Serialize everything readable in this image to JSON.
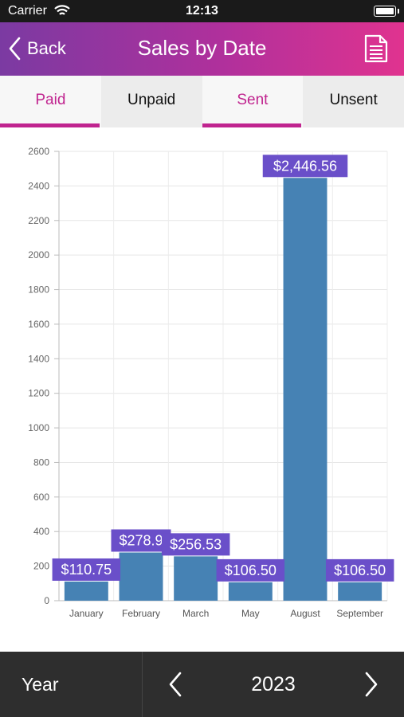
{
  "status_bar": {
    "carrier": "Carrier",
    "time": "12:13"
  },
  "header": {
    "back_label": "Back",
    "title": "Sales by Date"
  },
  "tabs": [
    {
      "label": "Paid",
      "active": true
    },
    {
      "label": "Unpaid",
      "active": false
    },
    {
      "label": "Sent",
      "active": true
    },
    {
      "label": "Unsent",
      "active": false
    }
  ],
  "colors": {
    "accent": "#c0248f",
    "bar": "#4682b4",
    "label_bg": "#6a4fc9"
  },
  "chart_data": {
    "type": "bar",
    "categories": [
      "January",
      "February",
      "March",
      "May",
      "August",
      "September"
    ],
    "values": [
      110.75,
      278.9,
      256.53,
      106.5,
      2446.56,
      106.5
    ],
    "data_labels": [
      "$110.75",
      "$278.9",
      "$256.53",
      "$106.50",
      "$2,446.56",
      "$106.50"
    ],
    "ylim": [
      0,
      2600
    ],
    "yticks": [
      0,
      200,
      400,
      600,
      800,
      1000,
      1200,
      1400,
      1600,
      1800,
      2000,
      2200,
      2400,
      2600
    ],
    "grid": true
  },
  "footer": {
    "year_label": "Year",
    "year": "2023"
  }
}
